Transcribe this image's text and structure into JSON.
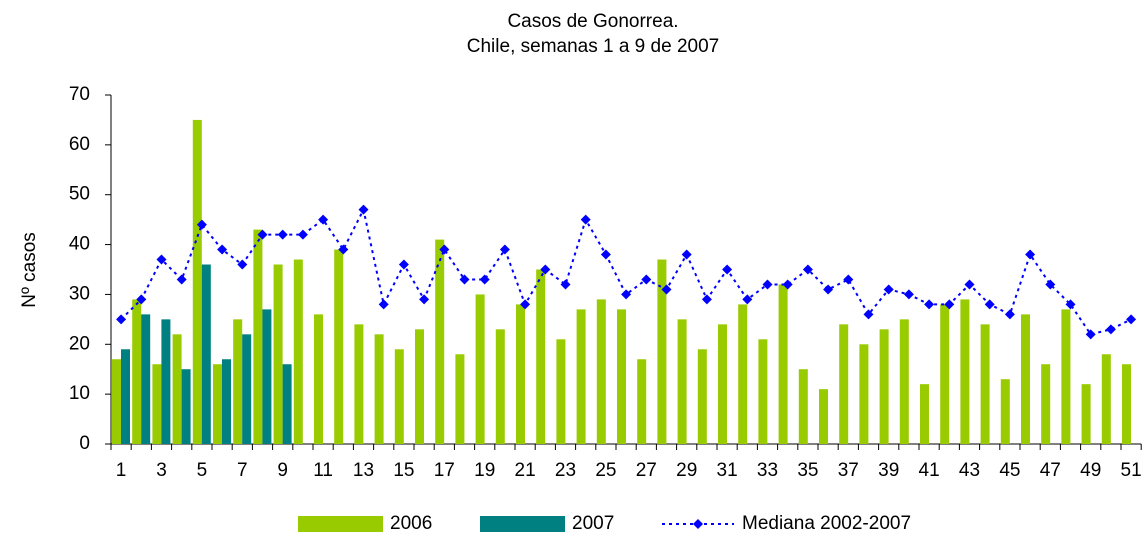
{
  "chart_data": {
    "type": "bar-line",
    "title": "Casos de Gonorrea.",
    "subtitle": "Chile, semanas 1 a 9 de 2007",
    "ylabel": "Nº casos",
    "categories": [
      "1",
      null,
      "3",
      null,
      "5",
      null,
      "7",
      null,
      "9",
      null,
      "11",
      null,
      "13",
      null,
      "15",
      null,
      "17",
      null,
      "19",
      null,
      "21",
      null,
      "23",
      null,
      "25",
      null,
      "27",
      null,
      "29",
      null,
      "31",
      null,
      "33",
      null,
      "35",
      null,
      "37",
      null,
      "39",
      null,
      "41",
      null,
      "43",
      null,
      "45",
      null,
      "47",
      null,
      "49",
      null,
      "51"
    ],
    "series": [
      {
        "name": "2006",
        "kind": "bar",
        "color": "#99cc00",
        "values": [
          17,
          29,
          16,
          22,
          65,
          16,
          25,
          43,
          36,
          37,
          26,
          39,
          24,
          22,
          19,
          23,
          41,
          18,
          30,
          23,
          28,
          35,
          21,
          27,
          29,
          27,
          17,
          37,
          25,
          19,
          24,
          28,
          21,
          32,
          15,
          11,
          24,
          20,
          23,
          25,
          12,
          28,
          29,
          24,
          13,
          26,
          16,
          27,
          12,
          18,
          16
        ]
      },
      {
        "name": "2007",
        "kind": "bar",
        "color": "#008080",
        "values": [
          19,
          26,
          25,
          15,
          36,
          17,
          22,
          27,
          16,
          null,
          null,
          null,
          null,
          null,
          null,
          null,
          null,
          null,
          null,
          null,
          null,
          null,
          null,
          null,
          null,
          null,
          null,
          null,
          null,
          null,
          null,
          null,
          null,
          null,
          null,
          null,
          null,
          null,
          null,
          null,
          null,
          null,
          null,
          null,
          null,
          null,
          null,
          null,
          null,
          null,
          null
        ]
      },
      {
        "name": "Mediana 2002-2007",
        "kind": "line",
        "color": "#0000ff",
        "values": [
          25,
          29,
          37,
          33,
          44,
          39,
          36,
          42,
          42,
          42,
          45,
          39,
          47,
          28,
          36,
          29,
          39,
          33,
          33,
          39,
          28,
          35,
          32,
          45,
          38,
          30,
          33,
          31,
          38,
          29,
          35,
          29,
          32,
          32,
          35,
          31,
          33,
          26,
          31,
          30,
          28,
          28,
          32,
          28,
          26,
          38,
          32,
          28,
          22,
          23,
          25
        ]
      }
    ],
    "ylim": [
      0,
      70
    ],
    "yticks": [
      0,
      10,
      20,
      30,
      40,
      50,
      60,
      70
    ],
    "grid": false,
    "legend": "bottom"
  }
}
